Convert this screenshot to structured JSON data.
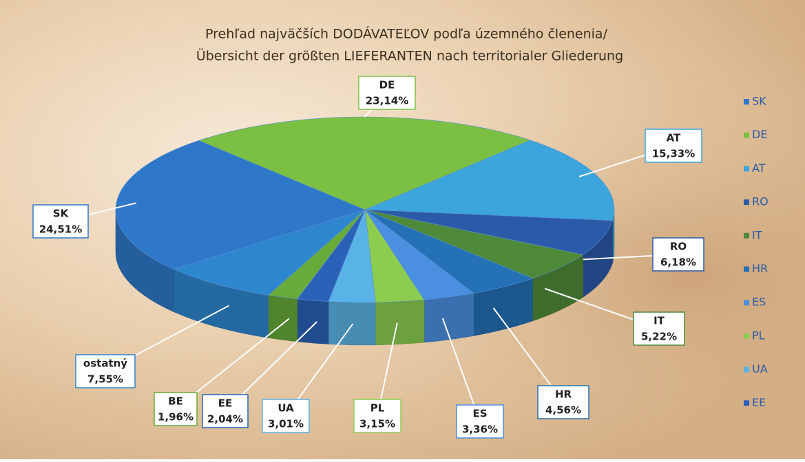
{
  "chart_data": {
    "type": "pie",
    "title": "Prehľad najväčších DODÁVATEĽOV podľa územného členenia/",
    "subtitle": "Übersicht der größten LIEFERANTEN nach territorialer Gliederung",
    "categories": [
      "SK",
      "DE",
      "AT",
      "RO",
      "IT",
      "HR",
      "ES",
      "PL",
      "UA",
      "EE",
      "BE",
      "ostatný"
    ],
    "values": [
      24.51,
      23.14,
      15.33,
      6.18,
      5.22,
      4.56,
      3.36,
      3.15,
      3.01,
      2.04,
      1.96,
      7.55
    ],
    "value_labels": [
      "24,51%",
      "23,14%",
      "15,33%",
      "6,18%",
      "5,22%",
      "4,56%",
      "3,36%",
      "3,15%",
      "3,01%",
      "2,04%",
      "1,96%",
      "7,55%"
    ],
    "colors": [
      "#2f78c9",
      "#7cc043",
      "#3ba5dc",
      "#2a5aa8",
      "#4f8a3a",
      "#2471b5",
      "#4a8fe0",
      "#8ccd4f",
      "#5ab3e6",
      "#2b62b8",
      "#68ab3a",
      "#2e86cf"
    ],
    "legend": "right"
  }
}
